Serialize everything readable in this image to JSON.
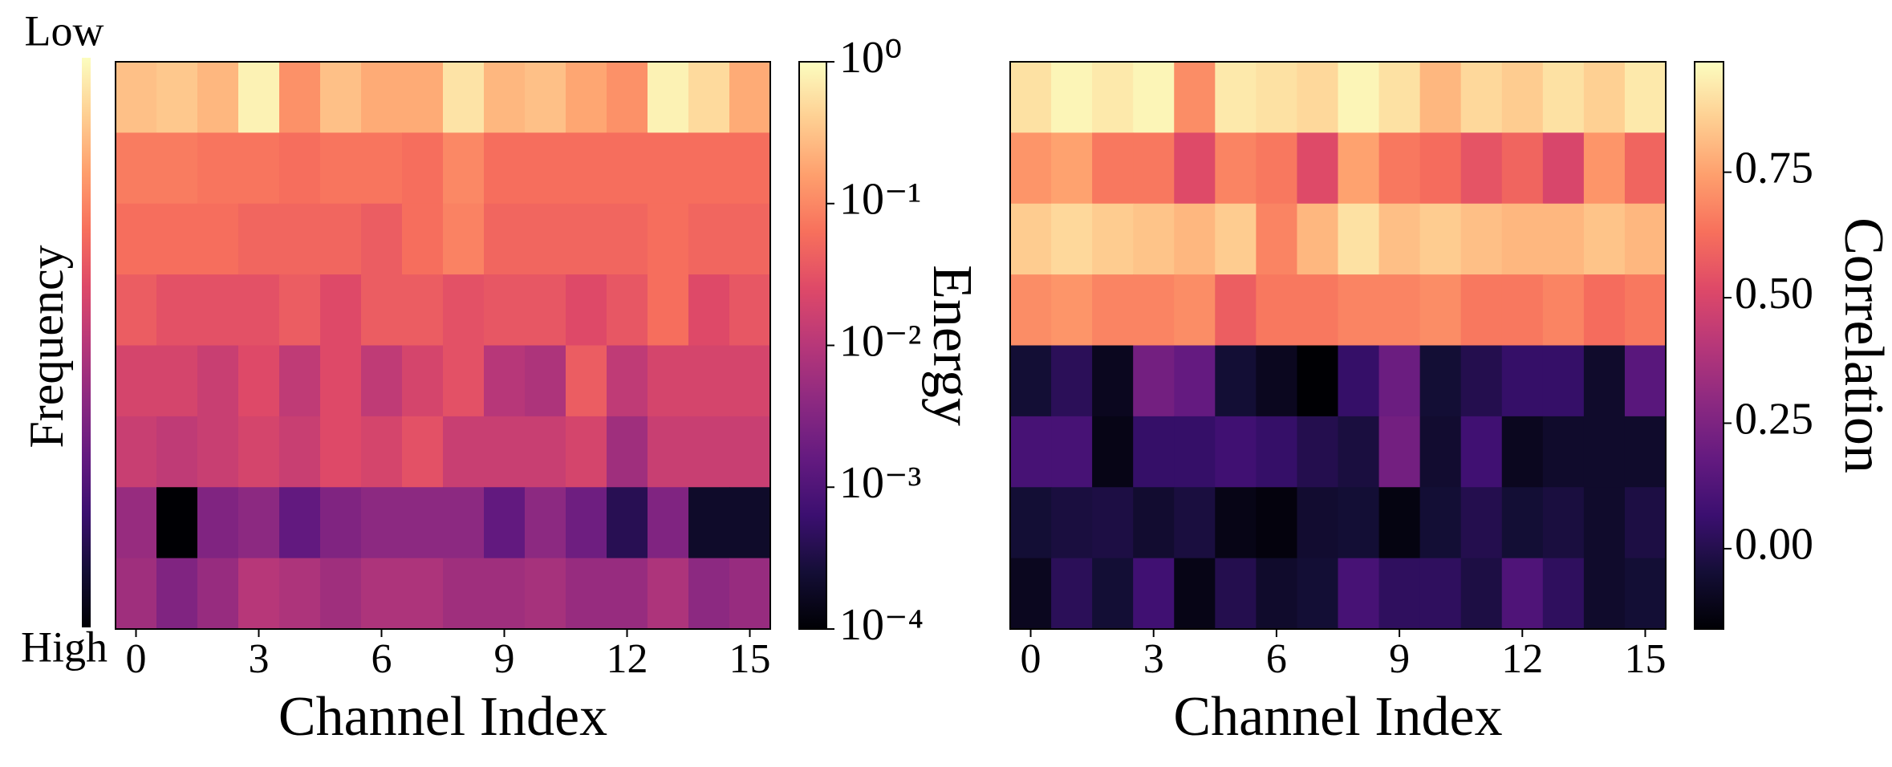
{
  "chart_data": [
    {
      "type": "heatmap",
      "colormap": "magma",
      "log_scale": true,
      "xlabel": "Channel Index",
      "colorbar_label": "Energy",
      "xlim": [
        -0.5,
        15.5
      ],
      "xticks": [
        0,
        3,
        6,
        9,
        12,
        15
      ],
      "clim": [
        0.0001,
        1
      ],
      "cticks": [
        {
          "value": 0.0001,
          "label": "10⁻⁴"
        },
        {
          "value": 0.001,
          "label": "10⁻³"
        },
        {
          "value": 0.01,
          "label": "10⁻²"
        },
        {
          "value": 0.1,
          "label": "10⁻¹"
        },
        {
          "value": 1,
          "label": "10⁰"
        }
      ],
      "frequency_legend": {
        "label": "Frequency",
        "low": "Low",
        "high": "High"
      },
      "z": [
        [
          0.3,
          0.35,
          0.25,
          0.8,
          0.12,
          0.3,
          0.2,
          0.2,
          0.6,
          0.25,
          0.3,
          0.18,
          0.12,
          0.8,
          0.5,
          0.2
        ],
        [
          0.08,
          0.08,
          0.07,
          0.07,
          0.06,
          0.07,
          0.07,
          0.06,
          0.1,
          0.06,
          0.06,
          0.06,
          0.06,
          0.06,
          0.06,
          0.06
        ],
        [
          0.06,
          0.06,
          0.06,
          0.05,
          0.05,
          0.05,
          0.04,
          0.06,
          0.09,
          0.05,
          0.05,
          0.05,
          0.05,
          0.06,
          0.05,
          0.05
        ],
        [
          0.04,
          0.03,
          0.03,
          0.03,
          0.04,
          0.025,
          0.04,
          0.04,
          0.03,
          0.035,
          0.035,
          0.025,
          0.035,
          0.06,
          0.025,
          0.035
        ],
        [
          0.02,
          0.02,
          0.015,
          0.025,
          0.012,
          0.025,
          0.012,
          0.02,
          0.03,
          0.01,
          0.008,
          0.04,
          0.012,
          0.02,
          0.02,
          0.02
        ],
        [
          0.015,
          0.012,
          0.015,
          0.02,
          0.015,
          0.025,
          0.02,
          0.03,
          0.015,
          0.015,
          0.015,
          0.02,
          0.006,
          0.015,
          0.015,
          0.015
        ],
        [
          0.005,
          0.0001,
          0.003,
          0.004,
          0.0015,
          0.003,
          0.004,
          0.004,
          0.004,
          0.0015,
          0.004,
          0.002,
          0.0004,
          0.003,
          0.0002,
          0.0002
        ],
        [
          0.006,
          0.003,
          0.005,
          0.01,
          0.008,
          0.006,
          0.008,
          0.008,
          0.006,
          0.006,
          0.007,
          0.005,
          0.005,
          0.008,
          0.004,
          0.005
        ]
      ]
    },
    {
      "type": "heatmap",
      "colormap": "magma",
      "log_scale": false,
      "xlabel": "Channel Index",
      "colorbar_label": "Correlation",
      "xlim": [
        -0.5,
        15.5
      ],
      "xticks": [
        0,
        3,
        6,
        9,
        12,
        15
      ],
      "clim": [
        -0.16,
        0.97
      ],
      "cticks": [
        {
          "value": 0,
          "label": "0.00"
        },
        0.25,
        {
          "value": 0.5,
          "label": "0.50"
        },
        0.75
      ],
      "z": [
        [
          0.9,
          0.95,
          0.92,
          0.95,
          0.7,
          0.92,
          0.9,
          0.88,
          0.95,
          0.9,
          0.8,
          0.88,
          0.85,
          0.9,
          0.86,
          0.92
        ],
        [
          0.72,
          0.75,
          0.65,
          0.65,
          0.52,
          0.68,
          0.65,
          0.52,
          0.75,
          0.65,
          0.62,
          0.55,
          0.6,
          0.5,
          0.72,
          0.6
        ],
        [
          0.85,
          0.88,
          0.85,
          0.83,
          0.8,
          0.85,
          0.68,
          0.8,
          0.9,
          0.82,
          0.85,
          0.82,
          0.8,
          0.8,
          0.83,
          0.8
        ],
        [
          0.7,
          0.72,
          0.68,
          0.68,
          0.7,
          0.58,
          0.65,
          0.65,
          0.68,
          0.68,
          0.7,
          0.65,
          0.65,
          0.68,
          0.62,
          0.65
        ],
        [
          -0.05,
          0.02,
          -0.1,
          0.22,
          0.18,
          -0.05,
          -0.1,
          -0.16,
          0.05,
          0.2,
          -0.05,
          0.0,
          0.05,
          0.05,
          -0.07,
          0.15
        ],
        [
          0.1,
          0.1,
          -0.12,
          0.05,
          0.05,
          0.08,
          0.05,
          0.0,
          -0.03,
          0.22,
          -0.06,
          0.08,
          -0.1,
          -0.07,
          -0.07,
          -0.07
        ],
        [
          -0.05,
          -0.03,
          -0.02,
          -0.06,
          -0.03,
          -0.12,
          -0.14,
          -0.06,
          -0.05,
          -0.13,
          -0.05,
          0.0,
          -0.05,
          -0.03,
          -0.07,
          -0.02
        ],
        [
          -0.1,
          0.02,
          -0.05,
          0.08,
          -0.12,
          0.0,
          -0.07,
          -0.05,
          0.1,
          0.03,
          0.03,
          -0.02,
          0.12,
          0.03,
          -0.07,
          -0.05
        ]
      ]
    }
  ]
}
